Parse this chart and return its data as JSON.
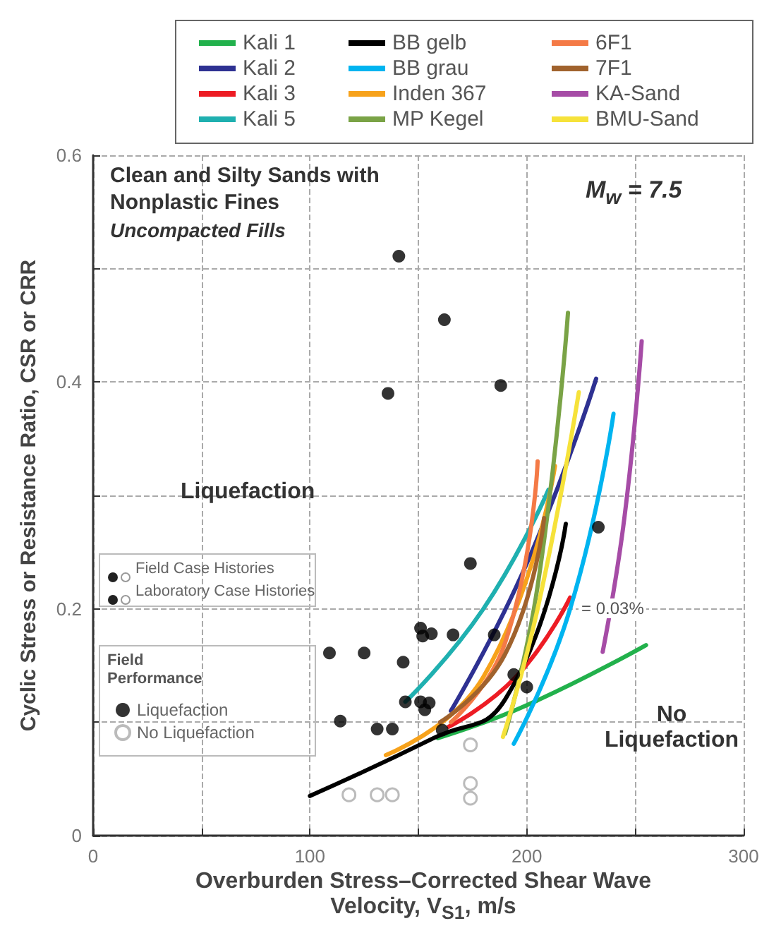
{
  "chart_data": {
    "type": "line",
    "xlabel": "Overburden Stress–Corrected Shear Wave Velocity, V$_{S1}$, m/s",
    "ylabel": "Cyclic Stress or Resistance Ratio, CSR or CRR",
    "legend_title": "Field Performance",
    "legend": "top",
    "grid": true,
    "line_style": "solid",
    "marker": "none",
    "xlim": [
      0,
      300
    ],
    "xticks": [
      0,
      {
        "value": 50,
        "label": null
      },
      100,
      {
        "value": 150,
        "label": null
      },
      200,
      {
        "value": 250,
        "label": null
      },
      300
    ],
    "ylim": [
      0,
      0.6
    ],
    "yticks": [
      0,
      {
        "value": 0.1,
        "label": null
      },
      0.2,
      {
        "value": 0.3,
        "label": null
      },
      0.4,
      {
        "value": 0.5,
        "label": null
      },
      0.6
    ],
    "annotations": [
      "Clean and Silty Sands with Nonplastic Fines",
      "Uncompacted Fills",
      "M$_{w}$ = 7.5",
      "Liquefaction",
      "No Liquefaction",
      "= 0.03%",
      "Field Case Histories",
      "Laboratory Case Histories"
    ],
    "series": [
      {
        "name": "Kali 1",
        "color": "#22b14c",
        "x": [
          159,
          200,
          255
        ],
        "values": [
          0.086,
          0.115,
          0.168
        ]
      },
      {
        "name": "Kali 2",
        "color": "#2e3192",
        "x": [
          165,
          200,
          232
        ],
        "values": [
          0.11,
          0.24,
          0.403
        ]
      },
      {
        "name": "Kali 3",
        "color": "#ed1c24",
        "x": [
          164,
          195,
          220
        ],
        "values": [
          0.096,
          0.14,
          0.21
        ]
      },
      {
        "name": "Kali 5",
        "color": "#1fb0b0",
        "x": [
          144,
          180,
          210
        ],
        "values": [
          0.118,
          0.2,
          0.305
        ]
      },
      {
        "name": "BB gelb",
        "color": "#000000",
        "x": [
          100,
          157,
          190,
          218
        ],
        "values": [
          0.035,
          0.086,
          0.12,
          0.275
        ]
      },
      {
        "name": "BB grau",
        "color": "#00b4f0",
        "x": [
          194,
          220,
          240
        ],
        "values": [
          0.081,
          0.2,
          0.372
        ]
      },
      {
        "name": "Inden 367",
        "color": "#f7a21b",
        "x": [
          135,
          180,
          213
        ],
        "values": [
          0.071,
          0.14,
          0.326
        ]
      },
      {
        "name": "MP Kegel",
        "color": "#7aa346",
        "x": [
          190,
          205,
          219
        ],
        "values": [
          0.09,
          0.22,
          0.461
        ]
      },
      {
        "name": "6F1",
        "color": "#f47a46",
        "x": [
          165,
          190,
          205
        ],
        "values": [
          0.1,
          0.17,
          0.33
        ]
      },
      {
        "name": "7F1",
        "color": "#a0622d",
        "x": [
          160,
          190,
          208
        ],
        "values": [
          0.1,
          0.16,
          0.28
        ]
      },
      {
        "name": "KA-Sand",
        "color": "#a64ca6",
        "x": [
          235,
          245,
          253
        ],
        "values": [
          0.162,
          0.28,
          0.436
        ]
      },
      {
        "name": "BMU-Sand",
        "color": "#f6e23a",
        "x": [
          189,
          205,
          224
        ],
        "values": [
          0.087,
          0.2,
          0.391
        ]
      },
      {
        "name": "Liquefaction",
        "type": "scatter",
        "marker": "circle",
        "color": "#000000",
        "x": [
          141,
          162,
          136,
          188,
          174,
          151,
          156,
          152,
          166,
          185,
          109,
          125,
          143,
          144,
          151,
          155,
          153,
          114,
          130,
          131,
          138,
          161,
          194,
          200,
          233
        ],
        "values": [
          0.511,
          0.455,
          0.39,
          0.397,
          0.24,
          0.183,
          0.178,
          0.176,
          0.177,
          0.177,
          0.161,
          0.161,
          0.153,
          0.118,
          0.118,
          0.117,
          0.111,
          0.101,
          null,
          0.094,
          0.094,
          0.093,
          0.142,
          0.131,
          0.272
        ]
      },
      {
        "name": "No Liquefaction",
        "type": "scatter",
        "marker": "circle",
        "color": "#aaaaaa",
        "x": [
          174,
          174,
          174,
          118,
          131,
          138
        ],
        "values": [
          0.08,
          0.046,
          0.033,
          0.036,
          0.036,
          0.036
        ]
      }
    ]
  }
}
